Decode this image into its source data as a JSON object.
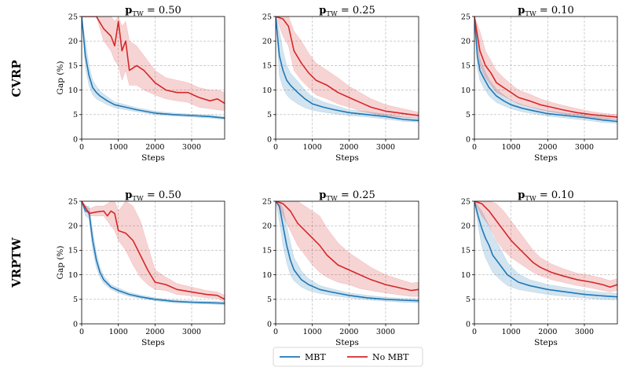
{
  "row_labels": [
    "CVRP",
    "VRPTW"
  ],
  "legend": {
    "entries": [
      {
        "label": "MBT",
        "color": "#1f77b4"
      },
      {
        "label": "No MBT",
        "color": "#d62728"
      }
    ]
  },
  "chart_data": [
    {
      "type": "line",
      "row": "CVRP",
      "title": "p_TW = 0.50",
      "title_sub": "TW",
      "title_value": "= 0.50",
      "xlabel": "Steps",
      "ylabel": "Gap (%)",
      "xlim": [
        0,
        3900
      ],
      "ylim": [
        0,
        25
      ],
      "xticks": [
        0,
        1000,
        2000,
        3000
      ],
      "yticks": [
        0,
        5,
        10,
        15,
        20,
        25
      ],
      "grid": true,
      "series": [
        {
          "name": "MBT",
          "color": "#1f77b4",
          "x": [
            0,
            100,
            200,
            300,
            400,
            500,
            700,
            900,
            1200,
            1500,
            2000,
            2500,
            3000,
            3500,
            3900
          ],
          "y": [
            25,
            17,
            13,
            10.5,
            9.5,
            8.8,
            7.8,
            7.0,
            6.5,
            6.0,
            5.3,
            5.0,
            4.8,
            4.6,
            4.3
          ],
          "lower": [
            25,
            14.5,
            11,
            9,
            8.2,
            7.8,
            7.0,
            6.4,
            6.0,
            5.6,
            5.0,
            4.7,
            4.5,
            4.3,
            4.0
          ],
          "upper": [
            25,
            20,
            15,
            12,
            10.8,
            9.8,
            8.6,
            7.6,
            7.0,
            6.4,
            5.7,
            5.3,
            5.1,
            4.9,
            4.6
          ]
        },
        {
          "name": "No MBT",
          "color": "#d62728",
          "x": [
            0,
            200,
            400,
            600,
            800,
            900,
            1000,
            1100,
            1200,
            1300,
            1500,
            1700,
            2000,
            2300,
            2600,
            2900,
            3200,
            3500,
            3700,
            3900
          ],
          "y": [
            25,
            25,
            25,
            22.5,
            21,
            19,
            24,
            18,
            20,
            14,
            15,
            14,
            11.5,
            10,
            9.5,
            9.5,
            8.5,
            7.8,
            8.2,
            7.3
          ],
          "lower": [
            25,
            25,
            25,
            20,
            18,
            16,
            15,
            12,
            14,
            11,
            11,
            10,
            9,
            8.2,
            7.8,
            7.5,
            6.5,
            6.2,
            6.0,
            5.8
          ],
          "upper": [
            25,
            25,
            25,
            25,
            25,
            24,
            25,
            23,
            24,
            20,
            19,
            17,
            14,
            12.5,
            12,
            11.5,
            10.5,
            10,
            10,
            9.5
          ]
        }
      ]
    },
    {
      "type": "line",
      "row": "CVRP",
      "title": "p_TW = 0.25",
      "title_sub": "TW",
      "title_value": "= 0.25",
      "xlabel": "Steps",
      "ylabel": "",
      "xlim": [
        0,
        3900
      ],
      "ylim": [
        0,
        25
      ],
      "xticks": [
        0,
        1000,
        2000,
        3000
      ],
      "yticks": [
        0,
        5,
        10,
        15,
        20,
        25
      ],
      "grid": true,
      "series": [
        {
          "name": "MBT",
          "color": "#1f77b4",
          "x": [
            0,
            100,
            200,
            300,
            400,
            600,
            800,
            1000,
            1300,
            1600,
            2000,
            2500,
            3000,
            3500,
            3900
          ],
          "y": [
            25,
            17,
            14,
            12,
            11,
            9.5,
            8.2,
            7.2,
            6.5,
            6.0,
            5.4,
            5.0,
            4.6,
            4.0,
            3.8
          ],
          "lower": [
            25,
            13,
            10.5,
            9,
            8.2,
            7.2,
            6.4,
            5.9,
            5.5,
            5.2,
            4.8,
            4.5,
            4.1,
            3.6,
            3.5
          ],
          "upper": [
            25,
            22,
            18,
            15,
            13.5,
            11.8,
            10,
            8.6,
            7.6,
            6.9,
            6.0,
            5.6,
            5.1,
            4.5,
            4.2
          ]
        },
        {
          "name": "No MBT",
          "color": "#d62728",
          "x": [
            0,
            200,
            350,
            500,
            700,
            900,
            1100,
            1400,
            1700,
            2000,
            2300,
            2600,
            3000,
            3400,
            3900
          ],
          "y": [
            25,
            24.5,
            23,
            18,
            15.5,
            13.5,
            12,
            11,
            9.5,
            8.5,
            7.5,
            6.5,
            5.7,
            5.3,
            4.8
          ],
          "lower": [
            25,
            21,
            19,
            14,
            12,
            10.5,
            9,
            8.2,
            7.2,
            6.5,
            5.8,
            5.3,
            4.8,
            4.5,
            4.3
          ],
          "upper": [
            25,
            25,
            25,
            22,
            20,
            17.5,
            15.5,
            14,
            12.5,
            10.8,
            9.5,
            8.2,
            7.0,
            6.3,
            5.5
          ]
        }
      ]
    },
    {
      "type": "line",
      "row": "CVRP",
      "title": "p_TW = 0.10",
      "title_sub": "TW",
      "title_value": "= 0.10",
      "xlabel": "Steps",
      "ylabel": "",
      "xlim": [
        0,
        3900
      ],
      "ylim": [
        0,
        25
      ],
      "xticks": [
        0,
        1000,
        2000,
        3000
      ],
      "yticks": [
        0,
        5,
        10,
        15,
        20,
        25
      ],
      "grid": true,
      "series": [
        {
          "name": "MBT",
          "color": "#1f77b4",
          "x": [
            0,
            80,
            150,
            250,
            400,
            600,
            800,
            1000,
            1300,
            1600,
            2000,
            2500,
            3000,
            3500,
            3900
          ],
          "y": [
            25,
            17,
            14,
            12.5,
            10.5,
            8.8,
            7.8,
            7.0,
            6.3,
            5.8,
            5.2,
            4.8,
            4.4,
            3.9,
            3.6
          ],
          "lower": [
            25,
            14.5,
            12,
            10.5,
            8.8,
            7.5,
            6.8,
            6.2,
            5.6,
            5.2,
            4.7,
            4.3,
            3.9,
            3.4,
            3.2
          ],
          "upper": [
            25,
            20,
            16.5,
            14.5,
            12.2,
            10.2,
            9.0,
            7.9,
            7.0,
            6.4,
            5.8,
            5.3,
            4.9,
            4.4,
            4.0
          ]
        },
        {
          "name": "No MBT",
          "color": "#d62728",
          "x": [
            0,
            150,
            300,
            450,
            600,
            800,
            1000,
            1200,
            1500,
            1800,
            2100,
            2400,
            2800,
            3200,
            3600,
            3900
          ],
          "y": [
            25,
            18,
            15,
            13.5,
            11.5,
            10.5,
            9.5,
            8.5,
            7.8,
            7.0,
            6.5,
            6.0,
            5.4,
            5.0,
            4.7,
            4.5
          ],
          "lower": [
            25,
            15,
            12.5,
            11,
            9.5,
            8.8,
            8.0,
            7.2,
            6.6,
            6.0,
            5.6,
            5.2,
            4.8,
            4.4,
            4.1,
            4.0
          ],
          "upper": [
            25,
            22,
            18,
            16,
            14,
            12.5,
            11.2,
            10,
            9.2,
            8.2,
            7.5,
            6.9,
            6.2,
            5.6,
            5.2,
            5.0
          ]
        }
      ]
    },
    {
      "type": "line",
      "row": "VRPTW",
      "title": "p_TW = 0.50",
      "title_sub": "TW",
      "title_value": "= 0.50",
      "xlabel": "Steps",
      "ylabel": "Gap (%)",
      "xlim": [
        0,
        3900
      ],
      "ylim": [
        0,
        25
      ],
      "xticks": [
        0,
        1000,
        2000,
        3000
      ],
      "yticks": [
        0,
        5,
        10,
        15,
        20,
        25
      ],
      "grid": true,
      "series": [
        {
          "name": "MBT",
          "color": "#1f77b4",
          "x": [
            0,
            100,
            200,
            300,
            400,
            500,
            600,
            800,
            1000,
            1300,
            1600,
            2000,
            2500,
            3000,
            3500,
            3900
          ],
          "y": [
            25,
            23,
            22.8,
            17,
            13,
            10.5,
            9.0,
            7.5,
            6.8,
            6.0,
            5.5,
            5.0,
            4.6,
            4.4,
            4.3,
            4.2
          ],
          "lower": [
            25,
            22,
            21.5,
            15,
            11.5,
            9.5,
            8.2,
            7.0,
            6.3,
            5.6,
            5.2,
            4.7,
            4.3,
            4.1,
            4.0,
            3.9
          ],
          "upper": [
            25,
            24,
            24,
            19,
            14.5,
            11.5,
            9.8,
            8.0,
            7.3,
            6.4,
            5.9,
            5.3,
            4.9,
            4.7,
            4.6,
            4.5
          ]
        },
        {
          "name": "No MBT",
          "color": "#d62728",
          "x": [
            0,
            200,
            400,
            600,
            700,
            800,
            900,
            1000,
            1200,
            1400,
            1600,
            1800,
            2000,
            2300,
            2600,
            3000,
            3400,
            3700,
            3900
          ],
          "y": [
            25,
            22.5,
            22.8,
            23,
            22,
            23,
            22.5,
            19,
            18.5,
            17,
            14,
            11,
            8.5,
            8.0,
            7.0,
            6.5,
            6.0,
            5.8,
            5.0
          ],
          "lower": [
            25,
            22,
            22,
            22,
            21,
            20,
            19,
            17,
            15,
            12,
            9.5,
            8.0,
            7.0,
            6.8,
            6.0,
            5.7,
            5.3,
            5.2,
            4.5
          ],
          "upper": [
            25,
            23.5,
            24,
            24,
            24.5,
            25,
            25,
            23,
            25,
            24,
            21,
            16,
            11,
            9.5,
            8.2,
            7.5,
            6.8,
            6.5,
            5.8
          ]
        }
      ]
    },
    {
      "type": "line",
      "row": "VRPTW",
      "title": "p_TW = 0.25",
      "title_sub": "TW",
      "title_value": "= 0.25",
      "xlabel": "Steps",
      "ylabel": "",
      "xlim": [
        0,
        3900
      ],
      "ylim": [
        0,
        25
      ],
      "xticks": [
        0,
        1000,
        2000,
        3000
      ],
      "yticks": [
        0,
        5,
        10,
        15,
        20,
        25
      ],
      "grid": true,
      "series": [
        {
          "name": "MBT",
          "color": "#1f77b4",
          "x": [
            0,
            100,
            200,
            300,
            400,
            500,
            700,
            900,
            1200,
            1500,
            2000,
            2500,
            3000,
            3500,
            3900
          ],
          "y": [
            25,
            24,
            20,
            16,
            13,
            11,
            9.0,
            8.0,
            7.0,
            6.5,
            5.8,
            5.3,
            5.0,
            4.8,
            4.7
          ],
          "lower": [
            25,
            21,
            16,
            12.5,
            10,
            8.8,
            7.5,
            6.8,
            6.2,
            5.8,
            5.3,
            4.9,
            4.6,
            4.4,
            4.3
          ],
          "upper": [
            25,
            25,
            23.5,
            20,
            16.5,
            13.5,
            10.8,
            9.2,
            7.8,
            7.2,
            6.3,
            5.8,
            5.4,
            5.2,
            5.1
          ]
        },
        {
          "name": "No MBT",
          "color": "#d62728",
          "x": [
            0,
            200,
            400,
            600,
            800,
            1000,
            1200,
            1400,
            1700,
            2000,
            2300,
            2600,
            3000,
            3400,
            3700,
            3900
          ],
          "y": [
            25,
            24.5,
            23,
            20.5,
            19,
            17.5,
            16,
            14,
            12,
            11,
            10,
            9.0,
            8.0,
            7.3,
            6.8,
            7.0
          ],
          "lower": [
            25,
            22,
            19,
            16,
            14,
            12,
            10.5,
            9.5,
            8.5,
            8.0,
            7.2,
            6.8,
            6.3,
            5.9,
            5.6,
            5.6
          ],
          "upper": [
            25,
            25,
            25,
            25,
            24,
            23,
            22,
            19.5,
            16.5,
            14.5,
            13,
            11.5,
            10,
            9.0,
            8.3,
            8.5
          ]
        }
      ]
    },
    {
      "type": "line",
      "row": "VRPTW",
      "title": "p_TW = 0.10",
      "title_sub": "TW",
      "title_value": "= 0.10",
      "xlabel": "Steps",
      "ylabel": "",
      "xlim": [
        0,
        3900
      ],
      "ylim": [
        0,
        25
      ],
      "xticks": [
        0,
        1000,
        2000,
        3000
      ],
      "yticks": [
        0,
        5,
        10,
        15,
        20,
        25
      ],
      "grid": true,
      "series": [
        {
          "name": "MBT",
          "color": "#1f77b4",
          "x": [
            0,
            100,
            200,
            300,
            400,
            500,
            700,
            900,
            1200,
            1500,
            2000,
            2500,
            3000,
            3500,
            3900
          ],
          "y": [
            25,
            22,
            19.5,
            17.5,
            16,
            14,
            12,
            10,
            8.5,
            7.8,
            7.0,
            6.5,
            6.0,
            5.7,
            5.5
          ],
          "lower": [
            25,
            20,
            16,
            13.5,
            12,
            10.5,
            9.0,
            7.8,
            7.0,
            6.6,
            6.0,
            5.6,
            5.3,
            5.0,
            4.9
          ],
          "upper": [
            25,
            24,
            23,
            21.5,
            20,
            18,
            15.5,
            12.5,
            10.2,
            9.0,
            8.0,
            7.4,
            6.8,
            6.4,
            6.2
          ]
        },
        {
          "name": "No MBT",
          "color": "#d62728",
          "x": [
            0,
            200,
            400,
            600,
            800,
            1000,
            1200,
            1400,
            1600,
            1800,
            2100,
            2400,
            2800,
            3200,
            3500,
            3700,
            3900
          ],
          "y": [
            25,
            24.5,
            23,
            21,
            19,
            17,
            15.5,
            14,
            12.5,
            11.5,
            10.5,
            9.8,
            9.0,
            8.5,
            8.0,
            7.5,
            8.0
          ],
          "lower": [
            25,
            22,
            20,
            17,
            15,
            13.5,
            12.5,
            11.5,
            10.5,
            9.8,
            9.0,
            8.5,
            7.8,
            7.3,
            6.8,
            6.5,
            6.8
          ],
          "upper": [
            25,
            25,
            25,
            24.5,
            23,
            21,
            19,
            17,
            15,
            13.5,
            12.2,
            11.3,
            10.3,
            9.8,
            9.3,
            8.8,
            9.2
          ]
        }
      ]
    }
  ]
}
